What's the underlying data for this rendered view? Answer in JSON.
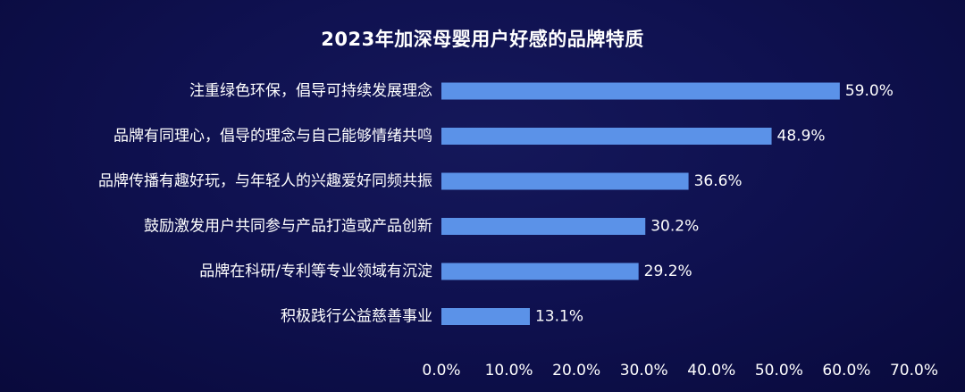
{
  "chart_data": {
    "type": "bar",
    "orientation": "horizontal",
    "title": "2023年加深母婴用户好感的品牌特质",
    "categories": [
      "注重绿色环保，倡导可持续发展理念",
      "品牌有同理心，倡导的理念与自己能够情绪共鸣",
      "品牌传播有趣好玩，与年轻人的兴趣爱好同频共振",
      "鼓励激发用户共同参与产品打造或产品创新",
      "品牌在科研/专利等专业领域有沉淀",
      "积极践行公益慈善事业"
    ],
    "values": [
      59.0,
      48.9,
      36.6,
      30.2,
      29.2,
      13.1
    ],
    "value_labels": [
      "59.0%",
      "48.9%",
      "36.6%",
      "30.2%",
      "29.2%",
      "13.1%"
    ],
    "xlim": [
      0,
      70
    ],
    "x_ticks": [
      0,
      10,
      20,
      30,
      40,
      50,
      60,
      70
    ],
    "x_tick_labels": [
      "0.0%",
      "10.0%",
      "20.0%",
      "30.0%",
      "40.0%",
      "50.0%",
      "60.0%",
      "70.0%"
    ],
    "xlabel": "",
    "ylabel": "",
    "grid": false,
    "legend": "none",
    "bar_color": "#5b92e8",
    "background_color": "#0f1150",
    "text_color": "#ffffff"
  }
}
